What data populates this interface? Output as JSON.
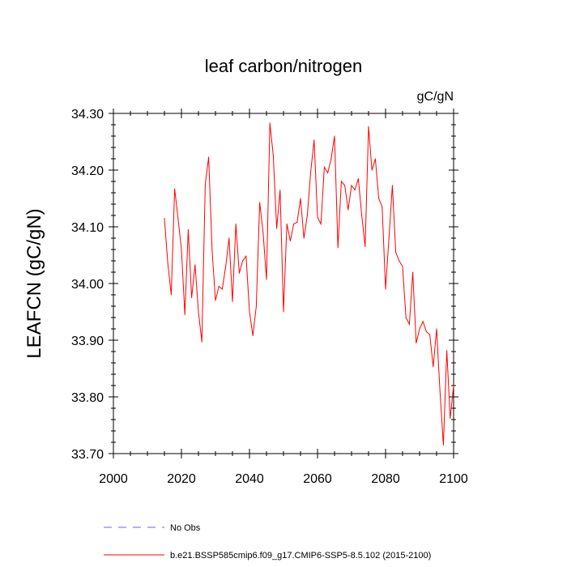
{
  "chart_data": {
    "type": "line",
    "title": "leaf carbon/nitrogen",
    "units": "gC/gN",
    "ylabel": "LEAFCN  (gC/gN)",
    "xlabel": "",
    "xlim": [
      2000,
      2100
    ],
    "ylim": [
      33.7,
      34.3
    ],
    "x_ticks": [
      2000,
      2020,
      2040,
      2060,
      2080,
      2100
    ],
    "x_tick_labels": [
      "2000",
      "2020",
      "2040",
      "2060",
      "2080",
      "2100"
    ],
    "y_ticks": [
      33.7,
      33.8,
      33.9,
      34.0,
      34.1,
      34.2,
      34.3
    ],
    "y_tick_labels": [
      "33.70",
      "33.80",
      "33.90",
      "34.00",
      "34.10",
      "34.20",
      "34.30"
    ],
    "grid": false,
    "legend_placement": "bottom-left",
    "series": [
      {
        "name": "No Obs",
        "color": "#6666ff",
        "dashed": true,
        "x": [],
        "values": []
      },
      {
        "name": "b.e21.BSSP585cmip6.f09_g17.CMIP6-SSP5-8.5.102 (2015-2100)",
        "color": "#ff0000",
        "dashed": false,
        "x": [
          2015,
          2016,
          2017,
          2018,
          2019,
          2020,
          2021,
          2022,
          2023,
          2024,
          2025,
          2026,
          2027,
          2028,
          2029,
          2030,
          2031,
          2032,
          2033,
          2034,
          2035,
          2036,
          2037,
          2038,
          2039,
          2040,
          2041,
          2042,
          2043,
          2044,
          2045,
          2046,
          2047,
          2048,
          2049,
          2050,
          2051,
          2052,
          2053,
          2054,
          2055,
          2056,
          2057,
          2058,
          2059,
          2060,
          2061,
          2062,
          2063,
          2064,
          2065,
          2066,
          2067,
          2068,
          2069,
          2070,
          2071,
          2072,
          2073,
          2074,
          2075,
          2076,
          2077,
          2078,
          2079,
          2080,
          2081,
          2082,
          2083,
          2084,
          2085,
          2086,
          2087,
          2088,
          2089,
          2090,
          2091,
          2092,
          2093,
          2094,
          2095,
          2096,
          2097,
          2098,
          2099,
          2100
        ],
        "values": [
          34.115,
          34.035,
          33.98,
          34.167,
          34.115,
          34.06,
          33.945,
          34.095,
          33.975,
          34.033,
          33.95,
          33.897,
          34.175,
          34.223,
          34.06,
          33.97,
          33.995,
          33.99,
          34.03,
          34.08,
          33.968,
          34.105,
          34.018,
          34.04,
          34.048,
          33.95,
          33.908,
          33.96,
          34.143,
          34.09,
          34.007,
          34.283,
          34.225,
          34.097,
          34.165,
          33.95,
          34.105,
          34.075,
          34.105,
          34.108,
          34.15,
          34.08,
          34.12,
          34.197,
          34.253,
          34.117,
          34.105,
          34.205,
          34.195,
          34.22,
          34.26,
          34.063,
          34.18,
          34.173,
          34.13,
          34.173,
          34.165,
          34.185,
          34.12,
          34.065,
          34.277,
          34.2,
          34.22,
          34.15,
          34.135,
          33.99,
          34.08,
          34.173,
          34.055,
          34.04,
          34.03,
          33.94,
          33.928,
          34.02,
          33.895,
          33.92,
          33.933,
          33.915,
          33.91,
          33.853,
          33.92,
          33.81,
          33.715,
          33.882,
          33.762,
          33.82
        ]
      }
    ]
  }
}
